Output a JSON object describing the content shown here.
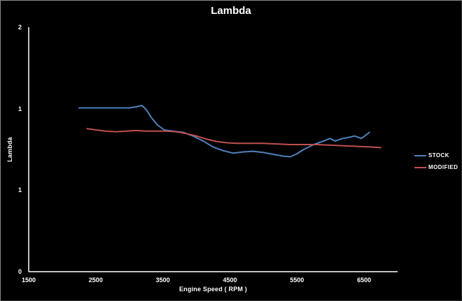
{
  "chart_data": {
    "type": "line",
    "title": "Lambda",
    "xlabel": "Engine Speed ( RPM )",
    "ylabel": "Lambda",
    "xlim": [
      1500,
      7000
    ],
    "ylim": [
      0,
      2
    ],
    "grid": false,
    "background_color": "#000000",
    "axis_color": "#ffffff",
    "text_color": "#ffffff",
    "legend_position": "middle-right",
    "x_ticks": [
      {
        "value": 1500,
        "label": "1500"
      },
      {
        "value": 2500,
        "label": "2500"
      },
      {
        "value": 3500,
        "label": "3500"
      },
      {
        "value": 4500,
        "label": "4500"
      },
      {
        "value": 5500,
        "label": "5500"
      },
      {
        "value": 6500,
        "label": "6500"
      }
    ],
    "y_ticks": [
      {
        "value": 2,
        "label": "2"
      },
      {
        "value": 1.3333,
        "label": "1"
      },
      {
        "value": 0.6667,
        "label": "1"
      },
      {
        "value": 0,
        "label": "0"
      }
    ],
    "series": [
      {
        "name": "STOCK",
        "color": "#4F81BD",
        "points": [
          [
            2250,
            1.34
          ],
          [
            2500,
            1.34
          ],
          [
            2750,
            1.34
          ],
          [
            3000,
            1.34
          ],
          [
            3120,
            1.35
          ],
          [
            3190,
            1.36
          ],
          [
            3260,
            1.32
          ],
          [
            3330,
            1.26
          ],
          [
            3420,
            1.2
          ],
          [
            3520,
            1.16
          ],
          [
            3650,
            1.15
          ],
          [
            3800,
            1.14
          ],
          [
            3950,
            1.11
          ],
          [
            4100,
            1.07
          ],
          [
            4250,
            1.02
          ],
          [
            4400,
            0.99
          ],
          [
            4550,
            0.97
          ],
          [
            4700,
            0.98
          ],
          [
            4850,
            0.985
          ],
          [
            5000,
            0.975
          ],
          [
            5150,
            0.96
          ],
          [
            5300,
            0.945
          ],
          [
            5400,
            0.94
          ],
          [
            5500,
            0.965
          ],
          [
            5600,
            1.0
          ],
          [
            5750,
            1.04
          ],
          [
            5900,
            1.07
          ],
          [
            5990,
            1.09
          ],
          [
            6070,
            1.07
          ],
          [
            6180,
            1.09
          ],
          [
            6280,
            1.1
          ],
          [
            6360,
            1.11
          ],
          [
            6460,
            1.09
          ],
          [
            6580,
            1.14
          ]
        ]
      },
      {
        "name": "MODIFIED",
        "color": "#C0504D",
        "points": [
          [
            2370,
            1.17
          ],
          [
            2500,
            1.16
          ],
          [
            2650,
            1.15
          ],
          [
            2800,
            1.145
          ],
          [
            2950,
            1.15
          ],
          [
            3100,
            1.155
          ],
          [
            3250,
            1.15
          ],
          [
            3400,
            1.15
          ],
          [
            3550,
            1.15
          ],
          [
            3700,
            1.145
          ],
          [
            3850,
            1.13
          ],
          [
            4000,
            1.11
          ],
          [
            4150,
            1.085
          ],
          [
            4300,
            1.065
          ],
          [
            4450,
            1.055
          ],
          [
            4600,
            1.05
          ],
          [
            4800,
            1.05
          ],
          [
            5000,
            1.05
          ],
          [
            5200,
            1.045
          ],
          [
            5400,
            1.04
          ],
          [
            5600,
            1.04
          ],
          [
            5800,
            1.04
          ],
          [
            6000,
            1.035
          ],
          [
            6200,
            1.03
          ],
          [
            6400,
            1.025
          ],
          [
            6600,
            1.02
          ],
          [
            6750,
            1.015
          ]
        ]
      }
    ]
  }
}
